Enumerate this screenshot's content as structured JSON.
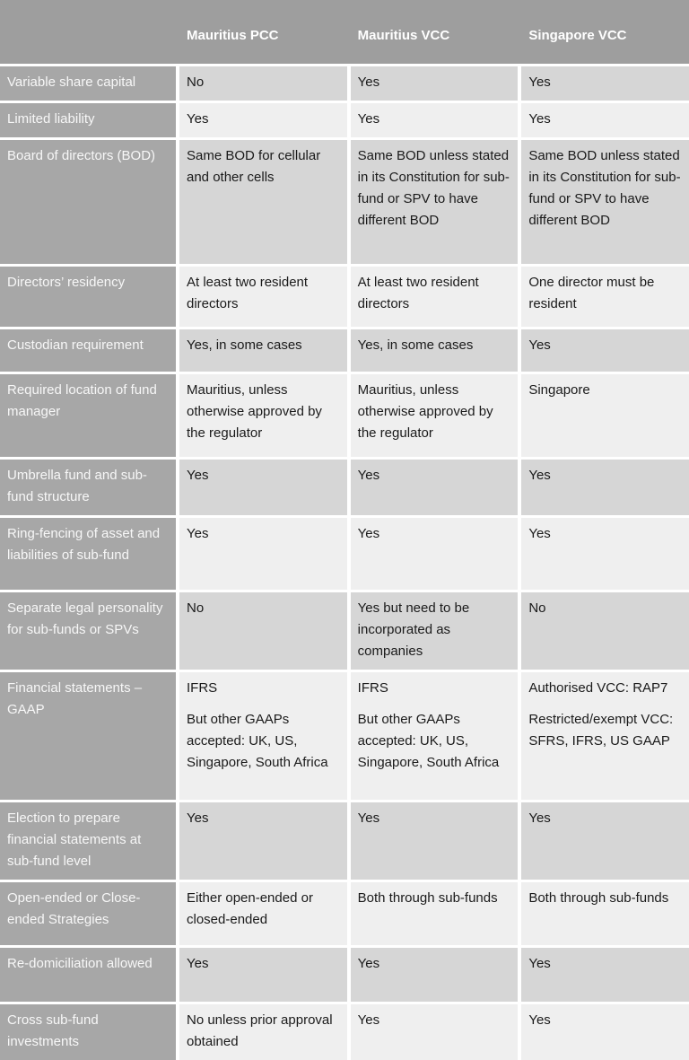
{
  "table": {
    "colors": {
      "header_bg": "#9e9e9e",
      "label_bg": "#a7a7a7",
      "band_dark": "#d6d6d6",
      "band_light": "#efefef",
      "border": "#ffffff",
      "header_text": "#ffffff",
      "cell_text": "#1a1a1a"
    },
    "columns": [
      "Mauritius PCC",
      "Mauritius VCC",
      "Singapore VCC"
    ],
    "rows": [
      {
        "label": "Variable share capital",
        "cells": [
          [
            "No"
          ],
          [
            "Yes"
          ],
          [
            "Yes"
          ]
        ]
      },
      {
        "label": "Limited liability",
        "cells": [
          [
            "Yes"
          ],
          [
            "Yes"
          ],
          [
            "Yes"
          ]
        ]
      },
      {
        "label": "Board of directors (BOD)",
        "cells": [
          [
            "Same BOD for cellular and other cells"
          ],
          [
            "Same BOD unless stated in its Constitution for sub-fund or SPV to have different BOD"
          ],
          [
            "Same BOD unless stated in its Constitution for sub-fund or SPV to have different BOD"
          ]
        ]
      },
      {
        "label": "Directors’ residency",
        "cells": [
          [
            "At least two resident directors"
          ],
          [
            "At least two resident directors"
          ],
          [
            "One director must be resident"
          ]
        ]
      },
      {
        "label": "Custodian requirement",
        "cells": [
          [
            "Yes, in some cases"
          ],
          [
            "Yes, in some cases"
          ],
          [
            "Yes"
          ]
        ]
      },
      {
        "label": "Required location of fund manager",
        "cells": [
          [
            "Mauritius, unless otherwise approved by the regulator"
          ],
          [
            "Mauritius, unless otherwise approved by the regulator"
          ],
          [
            "Singapore"
          ]
        ]
      },
      {
        "label": "Umbrella fund and sub-fund structure",
        "cells": [
          [
            "Yes"
          ],
          [
            "Yes"
          ],
          [
            "Yes"
          ]
        ]
      },
      {
        "label": "Ring-fencing of asset and liabilities of sub-fund",
        "cells": [
          [
            "Yes"
          ],
          [
            "Yes"
          ],
          [
            "Yes"
          ]
        ]
      },
      {
        "label": "Separate legal personality for sub-funds or SPVs",
        "cells": [
          [
            "No"
          ],
          [
            "Yes but need to be incorporated as companies"
          ],
          [
            "No"
          ]
        ]
      },
      {
        "label": "Financial statements – GAAP",
        "cells": [
          [
            "IFRS",
            "But other GAAPs accepted: UK, US, Singapore, South Africa"
          ],
          [
            "IFRS",
            "But other GAAPs accepted: UK, US, Singapore, South Africa"
          ],
          [
            "Authorised VCC: RAP7",
            "Restricted/exempt VCC: SFRS, IFRS, US GAAP"
          ]
        ]
      },
      {
        "label": "Election to prepare financial statements at sub-fund level",
        "cells": [
          [
            "Yes"
          ],
          [
            "Yes"
          ],
          [
            "Yes"
          ]
        ]
      },
      {
        "label": "Open-ended or Close-ended Strategies",
        "cells": [
          [
            "Either open-ended or closed-ended"
          ],
          [
            "Both through sub-funds"
          ],
          [
            "Both through sub-funds"
          ]
        ]
      },
      {
        "label": "Re-domiciliation allowed",
        "cells": [
          [
            "Yes"
          ],
          [
            "Yes"
          ],
          [
            "Yes"
          ]
        ]
      },
      {
        "label": "Cross sub-fund investments",
        "cells": [
          [
            "No unless prior approval obtained"
          ],
          [
            "Yes"
          ],
          [
            "Yes"
          ]
        ]
      }
    ]
  }
}
